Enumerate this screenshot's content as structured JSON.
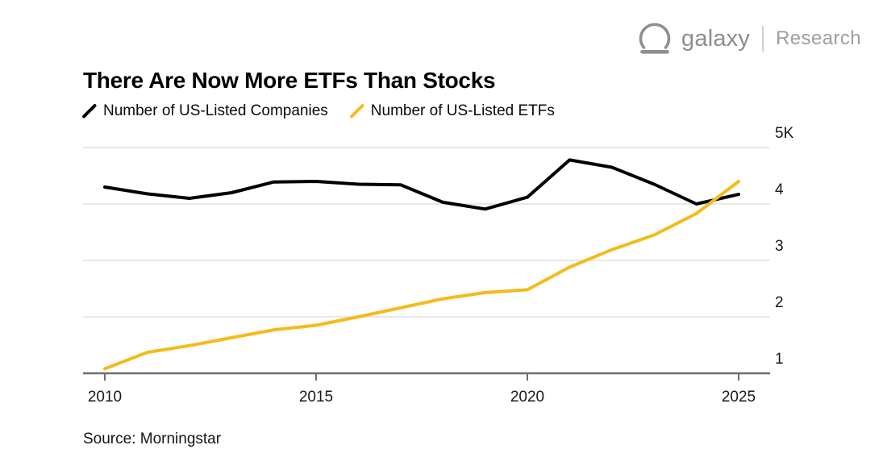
{
  "header": {
    "logo": {
      "brand": "galaxy",
      "suffix": "Research",
      "icon": "galaxy-helmet-icon",
      "brand_color": "#8d8d8d",
      "suffix_color": "#9e9e9e"
    }
  },
  "title": "There Are Now More ETFs Than Stocks",
  "legend": [
    {
      "label": "Number of US-Listed Companies",
      "color": "#000000"
    },
    {
      "label": "Number of US-Listed ETFs",
      "color": "#F3BB1C"
    }
  ],
  "source": "Source: Morningstar",
  "chart_data": {
    "type": "line",
    "title": "There Are Now More ETFs Than Stocks",
    "x": [
      2010,
      2011,
      2012,
      2013,
      2014,
      2015,
      2016,
      2017,
      2018,
      2019,
      2020,
      2021,
      2022,
      2023,
      2024,
      2025
    ],
    "series": [
      {
        "name": "Number of US-Listed Companies",
        "color": "#000000",
        "unit": "thousands",
        "values": [
          4.3,
          4.18,
          4.1,
          4.2,
          4.39,
          4.4,
          4.35,
          4.34,
          4.03,
          3.91,
          4.12,
          4.78,
          4.65,
          4.35,
          4.0,
          4.17
        ]
      },
      {
        "name": "Number of US-Listed ETFs",
        "color": "#F3BB1C",
        "unit": "thousands",
        "values": [
          1.08,
          1.37,
          1.49,
          1.63,
          1.77,
          1.85,
          2.0,
          2.16,
          2.32,
          2.43,
          2.48,
          2.88,
          3.19,
          3.45,
          3.83,
          4.4
        ]
      }
    ],
    "x_ticks": [
      2010,
      2015,
      2020,
      2025
    ],
    "y_ticks": [
      {
        "value": 5,
        "label": "5K"
      },
      {
        "value": 4,
        "label": "4"
      },
      {
        "value": 3,
        "label": "3"
      },
      {
        "value": 2,
        "label": "2"
      },
      {
        "value": 1,
        "label": "1"
      }
    ],
    "ylim": [
      1,
      5.3
    ],
    "xlabel": "",
    "ylabel": "",
    "grid": "horizontal",
    "legend_position": "top-left",
    "y_axis_side": "right",
    "grid_color": "#e9e9e9",
    "axis_color": "#6e6e6e",
    "tick_label_color": "#1a1a1a"
  }
}
